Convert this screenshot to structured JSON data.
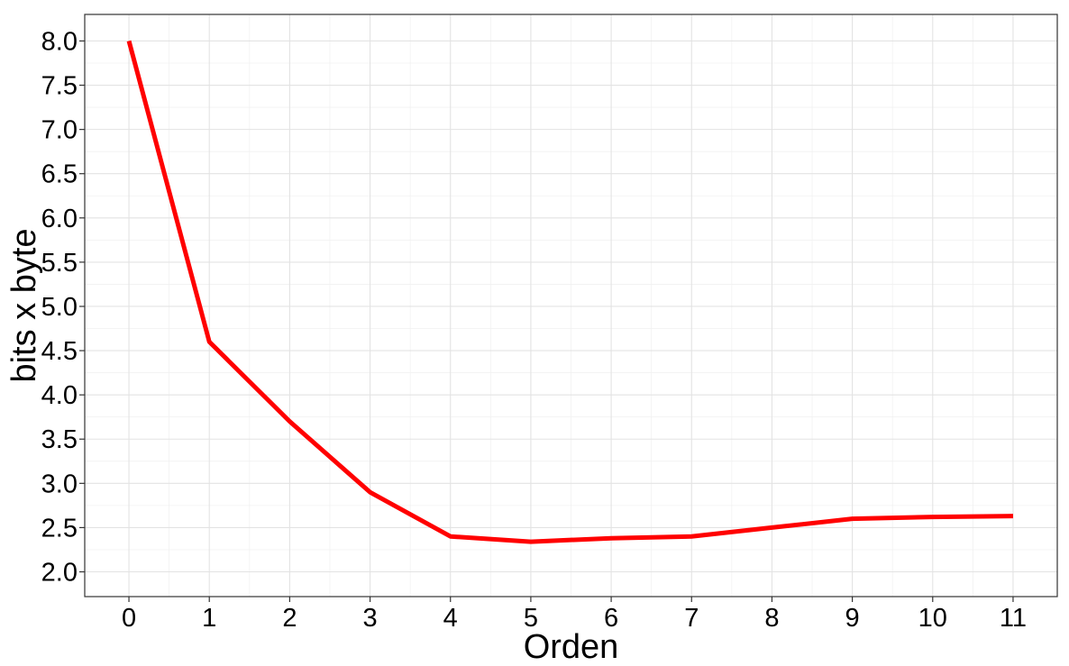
{
  "chart_data": {
    "type": "line",
    "title": "",
    "xlabel": "Orden",
    "ylabel": "bits x byte",
    "x": [
      0,
      1,
      2,
      3,
      4,
      5,
      6,
      7,
      8,
      9,
      10,
      11
    ],
    "series": [
      {
        "values": [
          8.0,
          4.6,
          3.7,
          2.9,
          2.4,
          2.34,
          2.38,
          2.4,
          2.5,
          2.6,
          2.62,
          2.63
        ],
        "color": "#ff0000"
      }
    ],
    "xlim": [
      -0.55,
      11.55
    ],
    "ylim": [
      1.72,
      8.3
    ],
    "xticks": [
      "0",
      "1",
      "2",
      "3",
      "4",
      "5",
      "6",
      "7",
      "8",
      "9",
      "10",
      "11"
    ],
    "yticks": [
      "2.0",
      "2.5",
      "3.0",
      "3.5",
      "4.0",
      "4.5",
      "5.0",
      "5.5",
      "6.0",
      "6.5",
      "7.0",
      "7.5",
      "8.0"
    ],
    "grid": true,
    "legend": "none"
  }
}
